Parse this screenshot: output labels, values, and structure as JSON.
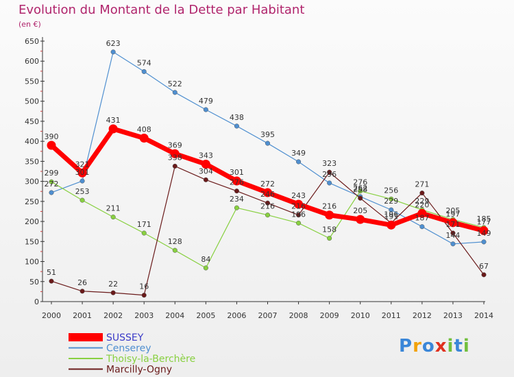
{
  "chart_data": {
    "type": "line",
    "title": "Evolution du Montant de la Dette par Habitant",
    "unit_label": "(en €)",
    "x": [
      "2000",
      "2001",
      "2002",
      "2003",
      "2004",
      "2005",
      "2006",
      "2007",
      "2008",
      "2009",
      "2010",
      "2011",
      "2012",
      "2013",
      "2014"
    ],
    "yticks": [
      0,
      50,
      100,
      150,
      200,
      250,
      300,
      350,
      400,
      450,
      500,
      550,
      600,
      650
    ],
    "ylim": [
      0,
      650
    ],
    "grid": false,
    "legend_position": "bottom-left",
    "series": [
      {
        "name": "SUSSEY",
        "color": "#ff0000",
        "values": [
          390,
          321,
          431,
          408,
          369,
          343,
          301,
          272,
          243,
          216,
          205,
          191,
          220,
          197,
          177
        ]
      },
      {
        "name": "Censerey",
        "color": "#4f8fd0",
        "values": [
          272,
          301,
          623,
          574,
          522,
          479,
          438,
          395,
          349,
          296,
          262,
          229,
          187,
          144,
          149
        ]
      },
      {
        "name": "Thoisy-la-Berchère",
        "color": "#88d040",
        "values": [
          299,
          253,
          211,
          171,
          128,
          84,
          234,
          216,
          196,
          158,
          276,
          256,
          229,
          205,
          185
        ]
      },
      {
        "name": "Marcilly-Ogny",
        "color": "#6a1a1a",
        "values": [
          51,
          26,
          22,
          16,
          338,
          304,
          276,
          246,
          216,
          323,
          258,
          196,
          271,
          171,
          67
        ]
      }
    ]
  },
  "brand": {
    "letters": [
      "P",
      "r",
      "o",
      "x",
      "i",
      "t",
      "i"
    ],
    "colors": [
      "#3a86d8",
      "#f2a20a",
      "#3a86d8",
      "#e0301e",
      "#72bf3e",
      "#3a86d8",
      "#72bf3e"
    ]
  }
}
